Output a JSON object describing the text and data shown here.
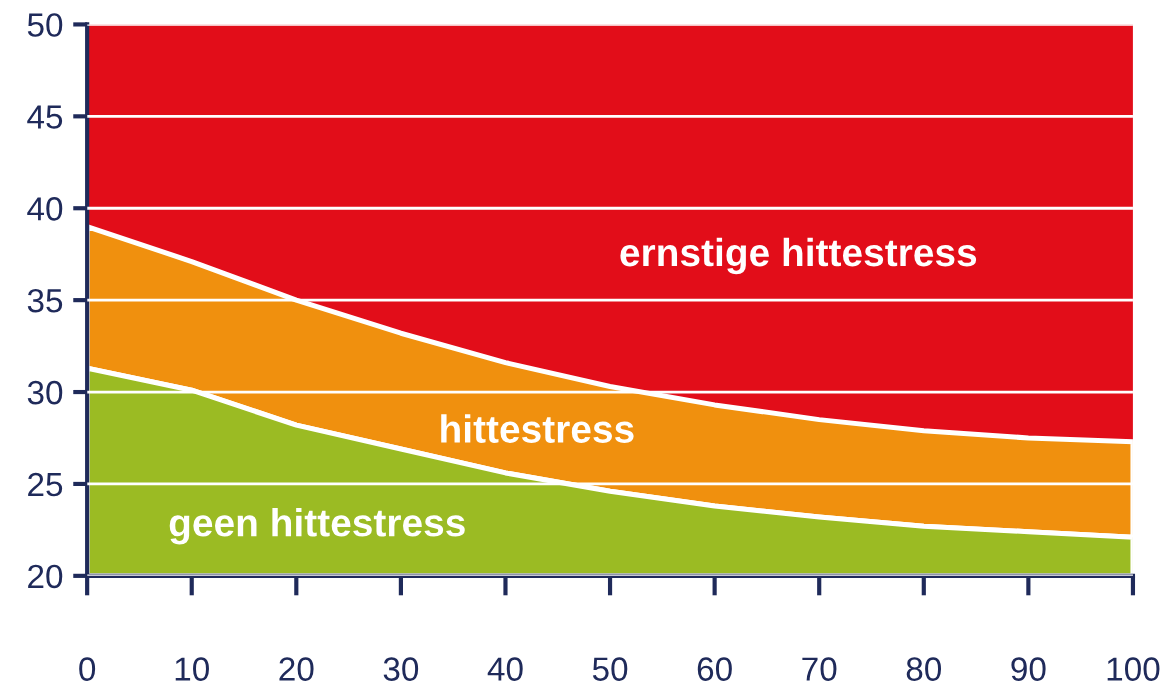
{
  "chart_data": {
    "type": "area",
    "x": [
      0,
      10,
      20,
      30,
      40,
      50,
      60,
      70,
      80,
      90,
      100
    ],
    "series": [
      {
        "color": "#9bbb23",
        "values": [
          31.3,
          30.1,
          28.2,
          26.9,
          25.6,
          24.6,
          23.8,
          23.2,
          22.7,
          22.4,
          22.1
        ]
      },
      {
        "color": "#f0900e",
        "values": [
          39.0,
          37.1,
          35.0,
          33.2,
          31.6,
          30.3,
          29.3,
          28.5,
          27.9,
          27.5,
          27.3
        ]
      },
      {
        "color": "#e20d19",
        "values": [
          50,
          50,
          50,
          50,
          50,
          50,
          50,
          50,
          50,
          50,
          50
        ]
      }
    ],
    "xlim": [
      0,
      100
    ],
    "ylim": [
      20,
      50
    ],
    "xticks": [
      0,
      10,
      20,
      30,
      40,
      50,
      60,
      70,
      80,
      90,
      100
    ],
    "yticks": [
      20,
      25,
      30,
      35,
      40,
      45,
      50
    ],
    "grid": "y",
    "annotations": [
      "ernstige hittestress",
      "hittestress",
      "geen hittestress"
    ]
  }
}
